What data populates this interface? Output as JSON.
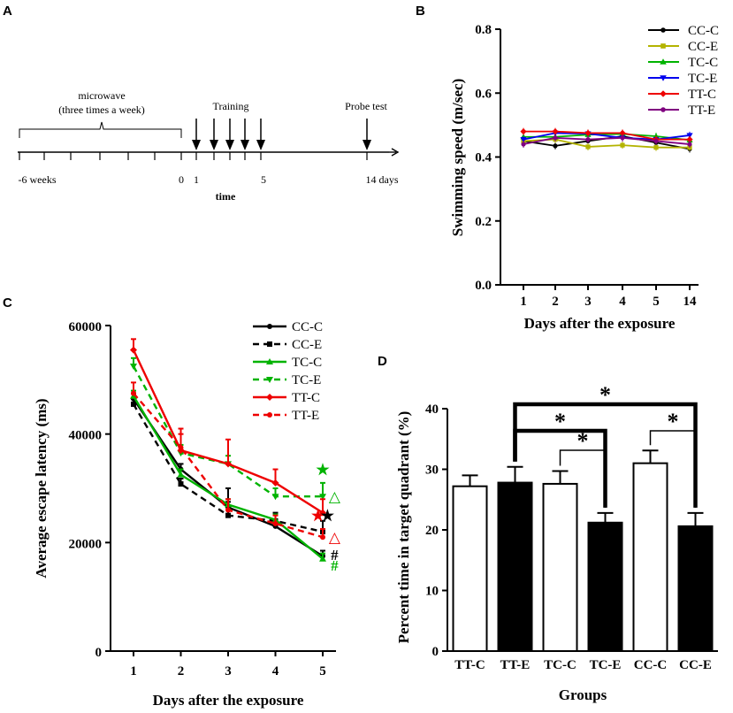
{
  "panels": {
    "A": {
      "letter": "A",
      "type": "timeline",
      "microwave_label_1": "microwave",
      "microwave_label_2": "(three times a week)",
      "training_label": "Training",
      "probe_label": "Probe test",
      "ticks": {
        "start": "-6 weeks",
        "zero": "0",
        "one": "1",
        "five": "5",
        "end": "14 days"
      },
      "axis_label": "time"
    },
    "B": {
      "letter": "B"
    },
    "C": {
      "letter": "C"
    },
    "D": {
      "letter": "D"
    }
  },
  "chart_data": [
    {
      "id": "B",
      "type": "line",
      "categories": [
        "1",
        "2",
        "3",
        "4",
        "5",
        "14"
      ],
      "xlabel": "Days after the exposure",
      "ylabel": "Swimming speed (m/sec)",
      "ylim": [
        0,
        0.8
      ],
      "yticks": [
        "0.0",
        "0.2",
        "0.4",
        "0.6",
        "0.8"
      ],
      "legend_position": "top-right",
      "series": [
        {
          "name": "CC-C",
          "color": "#000000",
          "marker": "circle",
          "values": [
            0.45,
            0.435,
            0.45,
            0.465,
            0.445,
            0.425
          ]
        },
        {
          "name": "CC-E",
          "color": "#b3b300",
          "marker": "square",
          "values": [
            0.45,
            0.455,
            0.432,
            0.437,
            0.43,
            0.43
          ]
        },
        {
          "name": "TC-C",
          "color": "#00b300",
          "marker": "triangle",
          "values": [
            0.463,
            0.463,
            0.47,
            0.472,
            0.465,
            0.453
          ]
        },
        {
          "name": "TC-E",
          "color": "#0000ee",
          "marker": "triangle-down",
          "values": [
            0.455,
            0.475,
            0.473,
            0.46,
            0.455,
            0.468
          ]
        },
        {
          "name": "TT-C",
          "color": "#ee0000",
          "marker": "diamond",
          "values": [
            0.48,
            0.48,
            0.475,
            0.475,
            0.455,
            0.455
          ]
        },
        {
          "name": "TT-E",
          "color": "#800080",
          "marker": "circle",
          "values": [
            0.44,
            0.46,
            0.455,
            0.46,
            0.45,
            0.44
          ]
        }
      ]
    },
    {
      "id": "C",
      "type": "line",
      "categories": [
        "1",
        "2",
        "3",
        "4",
        "5"
      ],
      "xlabel": "Days after the exposure",
      "ylabel": "Average escape latency (ms)",
      "ylim": [
        0,
        60000
      ],
      "yticks": [
        "0",
        "20000",
        "40000",
        "60000"
      ],
      "legend_position": "top-right",
      "series": [
        {
          "name": "CC-C",
          "color": "#000000",
          "dash": false,
          "marker": "circle",
          "values": [
            46500,
            33500,
            26500,
            23000,
            17500
          ],
          "err": [
            1000,
            1000,
            1000,
            1000,
            1000
          ]
        },
        {
          "name": "CC-E",
          "color": "#000000",
          "dash": true,
          "marker": "square",
          "values": [
            45500,
            30800,
            25000,
            24000,
            22000
          ],
          "err": [
            1000,
            1000,
            5000,
            1500,
            2000
          ]
        },
        {
          "name": "TC-C",
          "color": "#00b300",
          "dash": false,
          "marker": "triangle",
          "values": [
            47000,
            32500,
            27000,
            24200,
            17000
          ],
          "err": [
            1000,
            1000,
            1000,
            1000,
            1000
          ]
        },
        {
          "name": "TC-E",
          "color": "#00b300",
          "dash": true,
          "marker": "triangle-down",
          "values": [
            52500,
            36500,
            34500,
            28500,
            28500
          ],
          "err": [
            1500,
            1500,
            1500,
            1500,
            2500
          ]
        },
        {
          "name": "TT-C",
          "color": "#ee0000",
          "dash": false,
          "marker": "diamond",
          "values": [
            55500,
            37000,
            34500,
            31000,
            25500
          ],
          "err": [
            2000,
            3000,
            4500,
            2500,
            2500
          ]
        },
        {
          "name": "TT-E",
          "color": "#ee0000",
          "dash": true,
          "marker": "circle",
          "values": [
            47500,
            37500,
            26000,
            23500,
            21000
          ],
          "err": [
            2000,
            3500,
            2000,
            1500,
            1500
          ]
        }
      ],
      "annotations": [
        {
          "text": "★",
          "color": "#00b300",
          "day": 5,
          "y": 33500
        },
        {
          "text": "△",
          "color": "#00b300",
          "day": 5.25,
          "y": 28500
        },
        {
          "text": "★",
          "color": "#ee0000",
          "day": 4.9,
          "y": 25000
        },
        {
          "text": "★",
          "color": "#000000",
          "day": 5.1,
          "y": 25000
        },
        {
          "text": "△",
          "color": "#ee0000",
          "day": 5.25,
          "y": 21000
        },
        {
          "text": "#",
          "color": "#000000",
          "day": 5.25,
          "y": 17800
        },
        {
          "text": "#",
          "color": "#00b300",
          "day": 5.25,
          "y": 15800
        }
      ]
    },
    {
      "id": "D",
      "type": "bar",
      "categories": [
        "TT-C",
        "TT-E",
        "TC-C",
        "TC-E",
        "CC-C",
        "CC-E"
      ],
      "values": [
        27.2,
        27.8,
        27.6,
        21.2,
        31.0,
        20.6
      ],
      "errors": [
        1.8,
        2.6,
        2.1,
        1.6,
        2.1,
        2.2
      ],
      "fills": [
        "#ffffff",
        "#000000",
        "#ffffff",
        "#000000",
        "#ffffff",
        "#000000"
      ],
      "xlabel": "Groups",
      "ylabel": "Percent time in target quadrant (%)",
      "ylim": [
        0,
        40
      ],
      "yticks": [
        "0",
        "10",
        "20",
        "30",
        "40"
      ],
      "significance": [
        {
          "from": "TT-E",
          "to": "CC-E",
          "label": "*"
        },
        {
          "from": "TT-E",
          "to": "TC-E",
          "label": "*"
        },
        {
          "from": "TC-C",
          "to": "TC-E",
          "label": "*"
        },
        {
          "from": "CC-C",
          "to": "CC-E",
          "label": "*"
        }
      ]
    }
  ]
}
